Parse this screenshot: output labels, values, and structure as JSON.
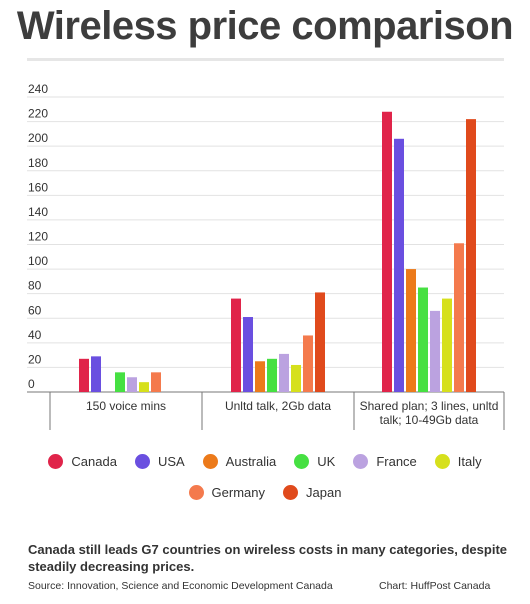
{
  "title": "Wireless price comparison",
  "caption": "Canada still leads G7 countries on wireless costs in many categories, despite steadily decreasing prices.",
  "source": "Source: Innovation, Science and Economic Development Canada",
  "credit": "Chart: HuffPost Canada",
  "chart_data": {
    "type": "bar",
    "categories": [
      "150 voice mins",
      "Unltd talk, 2Gb data",
      "Shared plan; 3 lines, unltd talk; 10-49Gb data"
    ],
    "category_lines": [
      [
        "150 voice mins"
      ],
      [
        "Unltd talk, 2Gb data"
      ],
      [
        "Shared plan; 3 lines, unltd",
        "talk; 10-49Gb data"
      ]
    ],
    "ylim": [
      0,
      240
    ],
    "yticks": [
      0,
      20,
      40,
      60,
      80,
      100,
      120,
      140,
      160,
      180,
      200,
      220,
      240
    ],
    "grid": true,
    "legend_position": "bottom",
    "series": [
      {
        "name": "Canada",
        "color": "#e0244a",
        "values": [
          27,
          76,
          228
        ]
      },
      {
        "name": "USA",
        "color": "#6a4fe0",
        "values": [
          29,
          61,
          206
        ]
      },
      {
        "name": "Australia",
        "color": "#ec7a1a",
        "values": [
          0,
          25,
          100
        ]
      },
      {
        "name": "UK",
        "color": "#46e042",
        "values": [
          16,
          27,
          85
        ]
      },
      {
        "name": "France",
        "color": "#bba2e0",
        "values": [
          12,
          31,
          66
        ]
      },
      {
        "name": "Italy",
        "color": "#d6e01c",
        "values": [
          8,
          22,
          76
        ]
      },
      {
        "name": "Germany",
        "color": "#f47a4d",
        "values": [
          16,
          46,
          121
        ]
      },
      {
        "name": "Japan",
        "color": "#e04a1c",
        "values": [
          0,
          81,
          222
        ]
      }
    ]
  }
}
